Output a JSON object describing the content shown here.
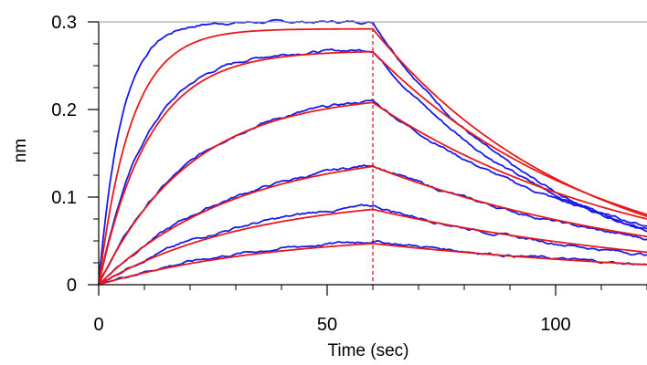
{
  "chart_data": {
    "type": "line",
    "title": "",
    "xlabel": "Time (sec)",
    "ylabel": "nm",
    "xlim": [
      0,
      120
    ],
    "ylim": [
      0,
      0.3
    ],
    "xticks": [
      {
        "value": 0,
        "label": "0"
      },
      {
        "value": 50,
        "label": "50"
      },
      {
        "value": 100,
        "label": "100"
      }
    ],
    "yticks": [
      {
        "value": 0,
        "label": "0"
      },
      {
        "value": 0.1,
        "label": "0.1"
      },
      {
        "value": 0.2,
        "label": "0.2"
      },
      {
        "value": 0.3,
        "label": "0.3"
      }
    ],
    "grid": false,
    "legend": "none",
    "dissociation_start_x": 60,
    "colors": {
      "measured": "#1a1ae6",
      "fit": "#e61a1a"
    },
    "association_end_x": 60,
    "x_end": 120,
    "measured_curves": [
      {
        "peak": 0.3,
        "k_on": 0.2,
        "k_off": 0.026
      },
      {
        "peak": 0.268,
        "k_on": 0.095,
        "k_off": 0.024
      },
      {
        "peak": 0.21,
        "k_on": 0.05,
        "k_off": 0.019
      },
      {
        "peak": 0.137,
        "k_on": 0.034,
        "k_off": 0.016
      },
      {
        "peak": 0.09,
        "k_on": 0.032,
        "k_off": 0.016
      },
      {
        "peak": 0.05,
        "k_on": 0.028,
        "k_off": 0.013
      }
    ],
    "fit_curves": [
      {
        "peak": 0.292,
        "k_on": 0.14,
        "k_off": 0.022
      },
      {
        "peak": 0.266,
        "k_on": 0.09,
        "k_off": 0.02
      },
      {
        "peak": 0.208,
        "k_on": 0.05,
        "k_off": 0.017
      },
      {
        "peak": 0.135,
        "k_on": 0.033,
        "k_off": 0.015
      },
      {
        "peak": 0.086,
        "k_on": 0.03,
        "k_off": 0.014
      },
      {
        "peak": 0.047,
        "k_on": 0.026,
        "k_off": 0.012
      }
    ]
  }
}
